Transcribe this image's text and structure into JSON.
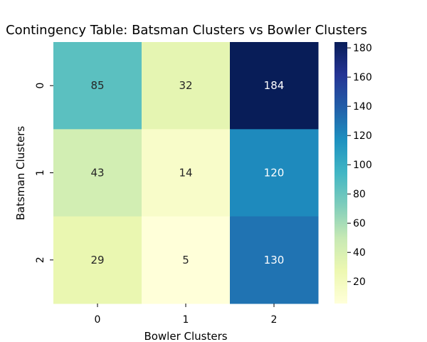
{
  "chart_data": {
    "type": "heatmap",
    "title": "Contingency Table: Batsman Clusters vs Bowler Clusters",
    "xlabel": "Bowler Clusters",
    "ylabel": "Batsman Clusters",
    "x_categories": [
      "0",
      "1",
      "2"
    ],
    "y_categories": [
      "0",
      "1",
      "2"
    ],
    "values": [
      [
        85,
        32,
        184
      ],
      [
        43,
        14,
        120
      ],
      [
        29,
        5,
        130
      ]
    ],
    "colormap": "YlGnBu",
    "colorbar": {
      "range": [
        5,
        184
      ],
      "ticks": [
        "20",
        "40",
        "60",
        "80",
        "100",
        "120",
        "140",
        "160",
        "180"
      ]
    }
  }
}
